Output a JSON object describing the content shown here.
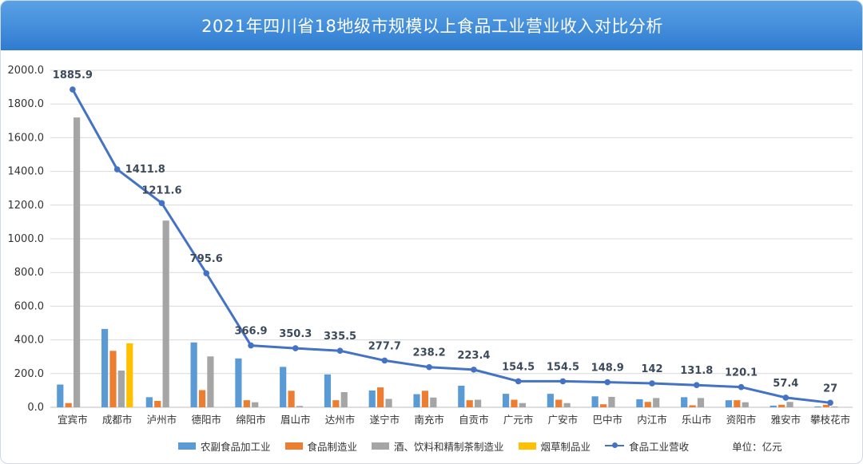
{
  "title": "2021年四川省18地级市规模以上食品工业营业收入对比分析",
  "unit_label": "单位：亿元",
  "colors": {
    "agri": "#5b9bd5",
    "food": "#ed7d31",
    "liquor": "#a5a5a5",
    "tobacco": "#ffc000",
    "line": "#4472c4"
  },
  "chart_data": {
    "type": "bar",
    "title": "2021年四川省18地级市规模以上食品工业营业收入对比分析",
    "ylim": [
      0,
      2000
    ],
    "yticks": [
      "0.0",
      "200.0",
      "400.0",
      "600.0",
      "800.0",
      "1000.0",
      "1200.0",
      "1400.0",
      "1600.0",
      "1800.0",
      "2000.0"
    ],
    "grid": true,
    "legend": "bottom",
    "categories": [
      "宜宾市",
      "成都市",
      "泸州市",
      "德阳市",
      "绵阳市",
      "眉山市",
      "达州市",
      "遂宁市",
      "南充市",
      "自贡市",
      "广元市",
      "广安市",
      "巴中市",
      "内江市",
      "乐山市",
      "资阳市",
      "雅安市",
      "攀枝花市"
    ],
    "series": [
      {
        "name": "农副食品加工业",
        "kind": "bar",
        "values": [
          135,
          465,
          60,
          385,
          290,
          240,
          195,
          100,
          78,
          128,
          80,
          80,
          65,
          48,
          60,
          42,
          10,
          5
        ]
      },
      {
        "name": "食品制造业",
        "kind": "bar",
        "values": [
          25,
          335,
          38,
          102,
          42,
          98,
          42,
          118,
          98,
          42,
          45,
          45,
          18,
          32,
          12,
          42,
          15,
          15
        ]
      },
      {
        "name": "酒、饮料和精制茶制造业",
        "kind": "bar",
        "values": [
          1720,
          218,
          1108,
          302,
          30,
          8,
          90,
          50,
          58,
          45,
          25,
          25,
          62,
          55,
          55,
          30,
          32,
          5
        ]
      },
      {
        "name": "烟草制品业",
        "kind": "bar",
        "values": [
          0,
          380,
          0,
          0,
          0,
          0,
          0,
          0,
          0,
          0,
          0,
          0,
          0,
          0,
          0,
          0,
          0,
          0
        ]
      },
      {
        "name": "食品工业营收",
        "kind": "line",
        "values": [
          1885.9,
          1411.8,
          1211.6,
          795.6,
          366.9,
          350.3,
          335.5,
          277.7,
          238.2,
          223.4,
          154.5,
          154.5,
          148.9,
          142,
          131.8,
          120.1,
          57.4,
          27
        ]
      }
    ]
  }
}
